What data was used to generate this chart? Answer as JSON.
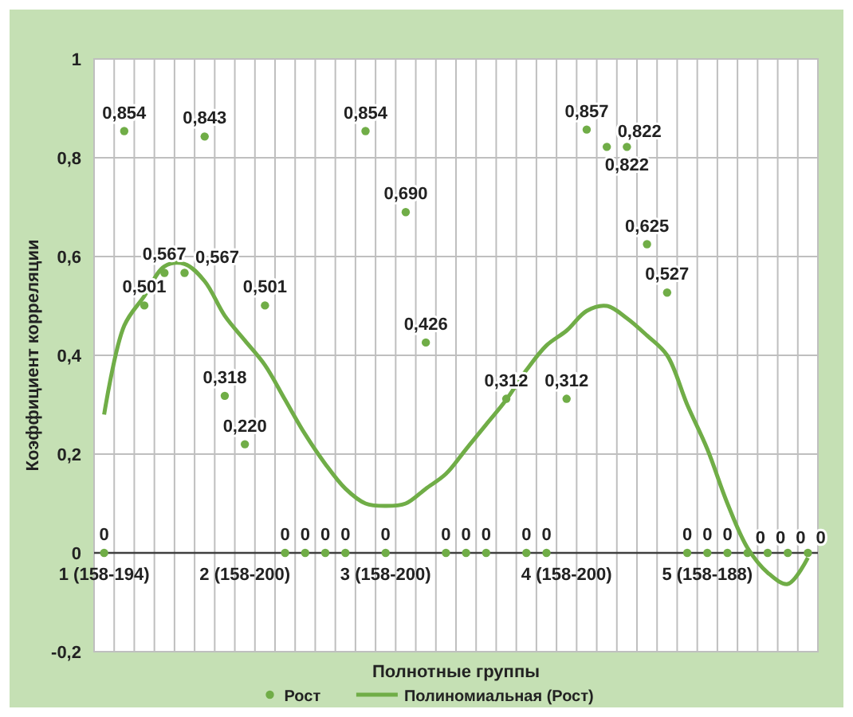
{
  "chart_data": {
    "type": "scatter",
    "xlabel": "Полнотные группы",
    "ylabel": "Коэффициент корреляции",
    "categories": [
      "1 (158-194)",
      null,
      null,
      null,
      null,
      null,
      null,
      "2 (158-200)",
      null,
      null,
      null,
      null,
      null,
      null,
      "3 (158-200)",
      null,
      null,
      null,
      null,
      null,
      null,
      null,
      null,
      "4 (158-200)",
      null,
      null,
      null,
      null,
      null,
      null,
      "5 (158-188)",
      null,
      null,
      null,
      null,
      null
    ],
    "ylim": [
      -0.2,
      1
    ],
    "yticks": [
      {
        "value": -0.2,
        "label": "-0,2"
      },
      0,
      {
        "value": 0.2,
        "label": "0,2"
      },
      {
        "value": 0.4,
        "label": "0,4"
      },
      {
        "value": 0.6,
        "label": "0,6"
      },
      {
        "value": 0.8,
        "label": "0,8"
      },
      1
    ],
    "grid": true,
    "legend": "bottom",
    "series": [
      {
        "name": "Рост",
        "marker": "circle",
        "color": "#70ad47",
        "values": [
          0,
          0.854,
          0.501,
          0.567,
          0.567,
          0.843,
          0.318,
          0.22,
          0.501,
          0,
          0,
          0,
          0,
          0.854,
          0,
          0.69,
          0.426,
          0,
          0,
          0,
          0.312,
          0,
          0,
          0.312,
          0.857,
          0.822,
          0.822,
          0.625,
          0.527,
          0,
          0,
          0,
          0,
          0,
          0,
          0
        ],
        "value_labels": [
          "0",
          "0,854",
          "0,501",
          "0,567",
          "0,567",
          "0,843",
          "0,318",
          "0,220",
          "0,501",
          "0",
          "0",
          "0",
          "0",
          "0,854",
          "0",
          "0,690",
          "0,426",
          "0",
          "0",
          "0",
          "0,312",
          "0",
          "0",
          "0,312",
          "0,857",
          "0,822",
          "0,822",
          "0,625",
          "0,527",
          "0",
          "0",
          "0",
          "0",
          "0",
          "0",
          "0"
        ]
      },
      {
        "name": "Полиномиальная (Рост)",
        "type": "line",
        "color": "#70ad47",
        "values": [
          0.28,
          0.46,
          0.52,
          0.58,
          0.585,
          0.55,
          0.48,
          0.43,
          0.38,
          0.31,
          0.24,
          0.18,
          0.13,
          0.1,
          0.095,
          0.1,
          0.13,
          0.16,
          0.21,
          0.26,
          0.31,
          0.37,
          0.42,
          0.45,
          0.49,
          0.5,
          0.475,
          0.44,
          0.4,
          0.3,
          0.21,
          0.1,
          0.01,
          -0.04,
          -0.063,
          -0.01
        ]
      }
    ]
  }
}
